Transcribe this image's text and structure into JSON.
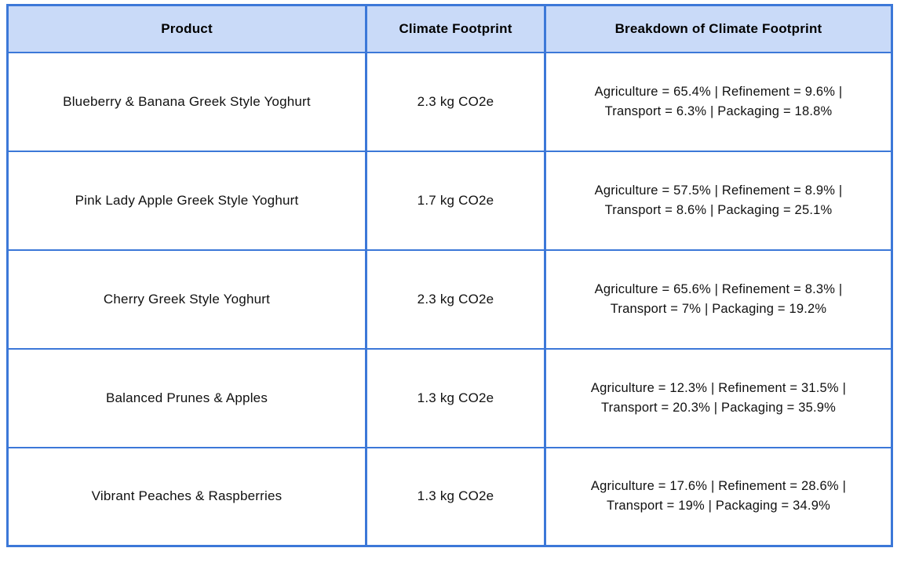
{
  "colors": {
    "border": "#3c78d8",
    "header_bg": "#c9daf8",
    "header_text": "#000000",
    "body_text": "#111111",
    "page_bg": "#ffffff"
  },
  "table": {
    "columns": [
      "Product",
      "Climate Footprint",
      "Breakdown of Climate Footprint"
    ],
    "rows": [
      {
        "product": "Blueberry & Banana Greek Style Yoghurt",
        "footprint": "2.3 kg CO2e",
        "breakdown_line1": "Agriculture = 65.4% | Refinement = 9.6% |",
        "breakdown_line2": "Transport = 6.3% | Packaging = 18.8%",
        "breakdown_values": {
          "agriculture_pct": 65.4,
          "refinement_pct": 9.6,
          "transport_pct": 6.3,
          "packaging_pct": 18.8
        }
      },
      {
        "product": "Pink Lady Apple Greek Style Yoghurt",
        "footprint": "1.7 kg CO2e",
        "breakdown_line1": "Agriculture = 57.5% | Refinement = 8.9% |",
        "breakdown_line2": "Transport = 8.6% | Packaging = 25.1%",
        "breakdown_values": {
          "agriculture_pct": 57.5,
          "refinement_pct": 8.9,
          "transport_pct": 8.6,
          "packaging_pct": 25.1
        }
      },
      {
        "product": "Cherry Greek Style Yoghurt",
        "footprint": "2.3 kg CO2e",
        "breakdown_line1": "Agriculture = 65.6% | Refinement = 8.3% |",
        "breakdown_line2": "Transport = 7% | Packaging = 19.2%",
        "breakdown_values": {
          "agriculture_pct": 65.6,
          "refinement_pct": 8.3,
          "transport_pct": 7,
          "packaging_pct": 19.2
        }
      },
      {
        "product": "Balanced Prunes & Apples",
        "footprint": "1.3 kg CO2e",
        "breakdown_line1": "Agriculture = 12.3% | Refinement = 31.5% |",
        "breakdown_line2": "Transport = 20.3% | Packaging = 35.9%",
        "breakdown_values": {
          "agriculture_pct": 12.3,
          "refinement_pct": 31.5,
          "transport_pct": 20.3,
          "packaging_pct": 35.9
        }
      },
      {
        "product": "Vibrant Peaches & Raspberries",
        "footprint": "1.3 kg CO2e",
        "breakdown_line1": "Agriculture = 17.6% | Refinement = 28.6% |",
        "breakdown_line2": "Transport = 19% | Packaging = 34.9%",
        "breakdown_values": {
          "agriculture_pct": 17.6,
          "refinement_pct": 28.6,
          "transport_pct": 19,
          "packaging_pct": 34.9
        }
      }
    ]
  }
}
